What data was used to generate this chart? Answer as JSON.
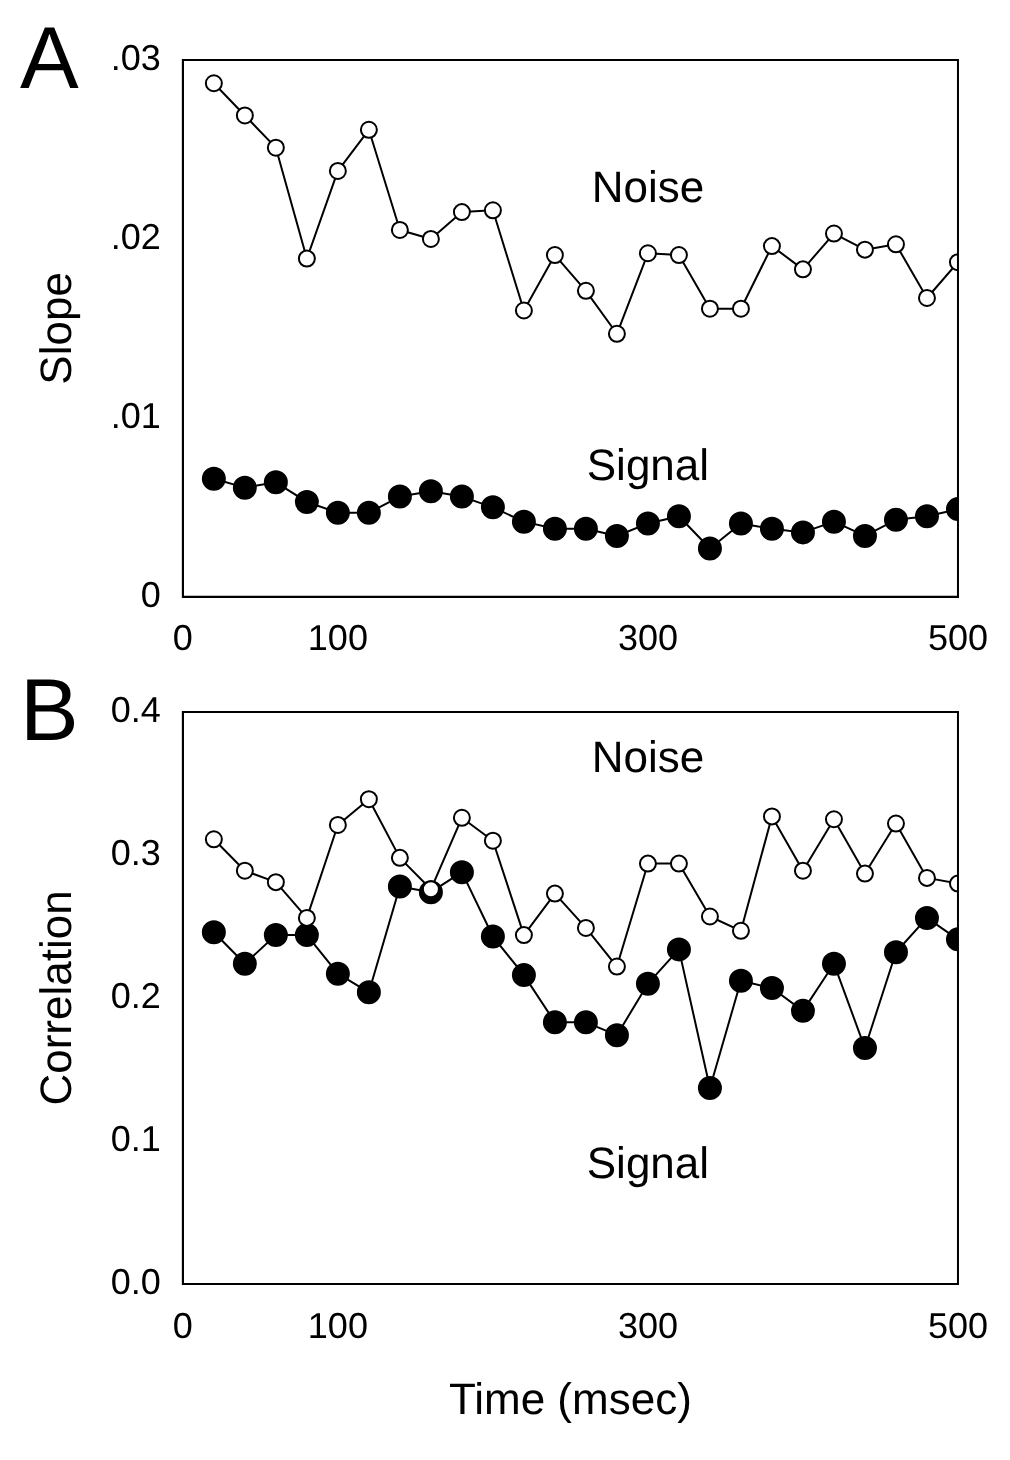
{
  "chart_data": [
    {
      "type": "line",
      "title": "A",
      "ylabel": "Slope",
      "x": [
        20,
        40,
        60,
        80,
        100,
        120,
        140,
        160,
        180,
        200,
        220,
        240,
        260,
        280,
        300,
        320,
        340,
        360,
        380,
        400,
        420,
        440,
        460,
        480,
        500
      ],
      "series": [
        {
          "name": "Noise",
          "color": "#000000",
          "values": [
            0.0287,
            0.0269,
            0.0251,
            0.0189,
            0.0238,
            0.0261,
            0.0205,
            0.02,
            0.0215,
            0.0216,
            0.016,
            0.0191,
            0.0171,
            0.0147,
            0.0192,
            0.0191,
            0.0161,
            0.0161,
            0.0196,
            0.0183,
            0.0203,
            0.0194,
            0.0197,
            0.0167,
            0.0187
          ]
        },
        {
          "name": "Signal",
          "color": "#000000",
          "values": [
            0.0066,
            0.0061,
            0.0064,
            0.0053,
            0.0047,
            0.0047,
            0.0056,
            0.0059,
            0.0056,
            0.005,
            0.0042,
            0.0038,
            0.0038,
            0.0034,
            0.0041,
            0.0045,
            0.0027,
            0.0041,
            0.0038,
            0.0036,
            0.0042,
            0.0034,
            0.0043,
            0.0045,
            0.0049
          ]
        }
      ],
      "xlim": [
        0,
        500
      ],
      "xticks": [
        0,
        100,
        300,
        500
      ],
      "ylim": [
        0,
        0.03
      ],
      "yticks": [
        {
          "value": 0,
          "label": "0"
        },
        {
          "value": 0.01,
          "label": ".01"
        },
        {
          "value": 0.02,
          "label": ".02"
        },
        {
          "value": 0.03,
          "label": ".03"
        }
      ],
      "grid": false,
      "legend": false,
      "marker": "circle",
      "line_style": "solid"
    },
    {
      "type": "line",
      "title": "B",
      "xlabel": "Time (msec)",
      "ylabel": "Correlation",
      "x": [
        20,
        40,
        60,
        80,
        100,
        120,
        140,
        160,
        180,
        200,
        220,
        240,
        260,
        280,
        300,
        320,
        340,
        360,
        380,
        400,
        420,
        440,
        460,
        480,
        500
      ],
      "series": [
        {
          "name": "Noise",
          "color": "#000000",
          "values": [
            0.311,
            0.289,
            0.281,
            0.256,
            0.321,
            0.339,
            0.298,
            0.276,
            0.326,
            0.31,
            0.244,
            0.273,
            0.249,
            0.222,
            0.294,
            0.294,
            0.257,
            0.247,
            0.327,
            0.289,
            0.325,
            0.287,
            0.322,
            0.284,
            0.28
          ]
        },
        {
          "name": "Signal",
          "color": "#000000",
          "values": [
            0.246,
            0.224,
            0.244,
            0.244,
            0.217,
            0.204,
            0.278,
            0.274,
            0.288,
            0.243,
            0.216,
            0.183,
            0.183,
            0.174,
            0.21,
            0.234,
            0.137,
            0.212,
            0.207,
            0.191,
            0.224,
            0.165,
            0.232,
            0.256,
            0.241
          ]
        }
      ],
      "xlim": [
        0,
        500
      ],
      "xticks": [
        0,
        100,
        300,
        500
      ],
      "ylim": [
        0,
        0.4
      ],
      "yticks": [
        {
          "value": 0,
          "label": "0.0"
        },
        {
          "value": 0.1,
          "label": "0.1"
        },
        {
          "value": 0.2,
          "label": "0.2"
        },
        {
          "value": 0.3,
          "label": "0.3"
        },
        {
          "value": 0.4,
          "label": "0.4"
        }
      ],
      "grid": false,
      "legend": false,
      "marker": "circle",
      "line_style": "solid"
    }
  ]
}
